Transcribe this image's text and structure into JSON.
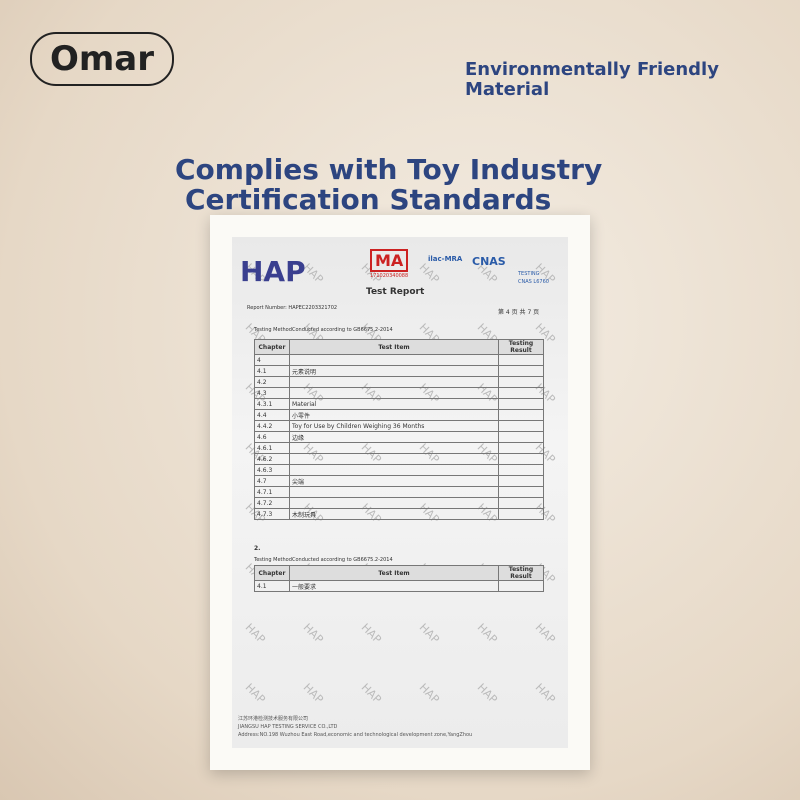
{
  "brand": "Omar",
  "tagline": "Environmentally Friendly Material",
  "headline": {
    "line1": "Complies with Toy Industry",
    "line2": "Certification Standards"
  },
  "report": {
    "logo": "HAP",
    "ma_logo": "MA",
    "ma_number": "171020340088",
    "ilac_logo": "ilac-MRA",
    "cnas_logo": "CNAS",
    "testing": "TESTING",
    "cnas_number": "CNAS L6760",
    "title": "Test Report",
    "report_number": "Report Number: HAPEC2203321702",
    "page": "第 4 页 共 7 页",
    "method_label": "Testing Method",
    "method": "Conducted according to GB6675.2-2014",
    "table": {
      "header": [
        "Chapter",
        "Test Item",
        "Testing Result"
      ],
      "rows": [
        [
          "4",
          ""
        ],
        [
          "4.1",
          "元素说明"
        ],
        [
          "4.2",
          ""
        ],
        [
          "4.3",
          ""
        ],
        [
          "4.3.1",
          "Material"
        ],
        [
          "4.4",
          "小零件"
        ],
        [
          "4.4.2",
          "Toy for Use by Children Weighing 36 Months"
        ],
        [
          "4.6",
          "边缘"
        ],
        [
          "4.6.1",
          ""
        ],
        [
          "4.6.2",
          ""
        ],
        [
          "4.6.3",
          ""
        ],
        [
          "4.7",
          "尖端"
        ],
        [
          "4.7.1",
          ""
        ],
        [
          "4.7.2",
          ""
        ],
        [
          "4.7.3",
          "木制玩具"
        ]
      ]
    },
    "section2": "2.",
    "table2": {
      "header": [
        "Chapter",
        "Test Item",
        "Testing Result"
      ],
      "rows": [
        [
          "4.1",
          "一般要求"
        ]
      ]
    },
    "watermark": "HAP",
    "footer": [
      "江苏环港检测技术服务有限公司",
      "JIANGSU HAP TESTING SERVICE CO.,LTD",
      "Address:NO.198 Wuzhou East Road,economic and technological development zone,YangZhou"
    ]
  }
}
